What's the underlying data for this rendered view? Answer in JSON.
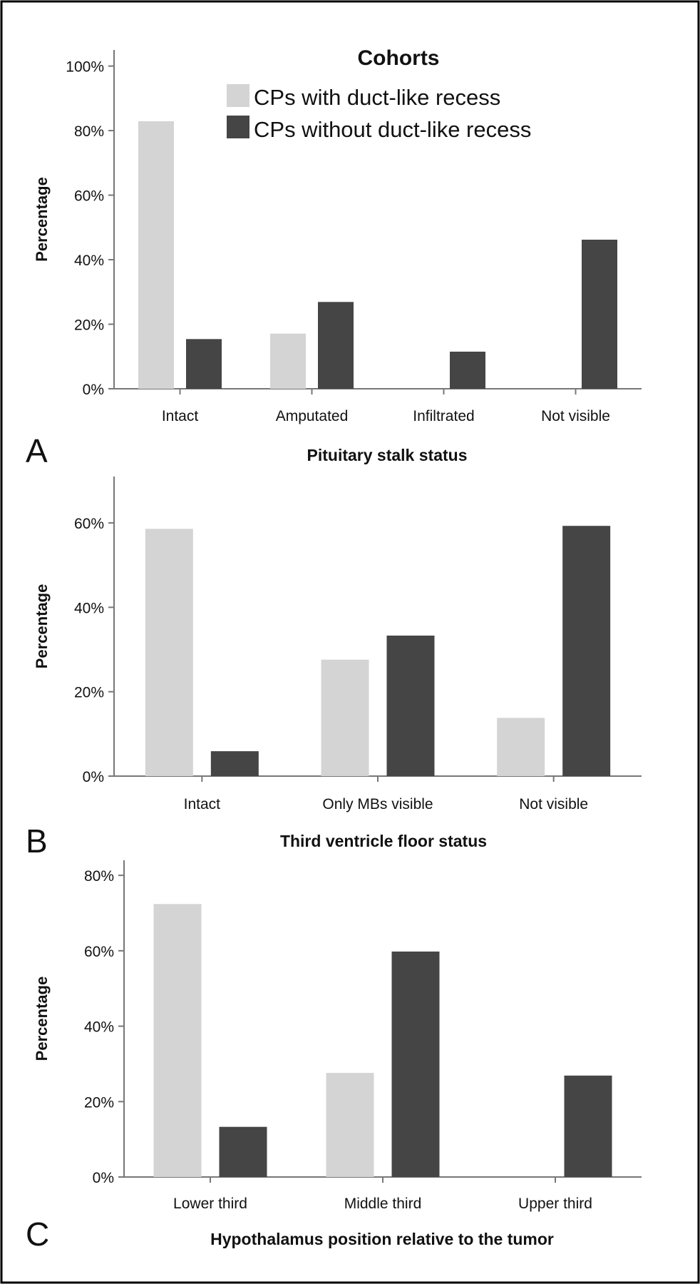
{
  "legend": {
    "title": "Cohorts",
    "entries": [
      {
        "label": "CPs with duct-like recess",
        "color": "#d4d4d4"
      },
      {
        "label": "CPs without duct-like recess",
        "color": "#454545"
      }
    ]
  },
  "chart_data": [
    {
      "panel": "A",
      "type": "bar",
      "categories": [
        "Intact",
        "Amputated",
        "Infiltrated",
        "Not visible"
      ],
      "series": [
        {
          "name": "CPs with duct-like recess",
          "values": [
            82.9,
            17.1,
            0,
            0
          ]
        },
        {
          "name": "CPs without duct-like recess",
          "values": [
            15.4,
            26.9,
            11.5,
            46.2
          ]
        }
      ],
      "xlabel": "Pituitary stalk status",
      "ylabel": "Percentage",
      "yticks": [
        "0%",
        "20%",
        "40%",
        "60%",
        "80%",
        "100%"
      ],
      "ylim": [
        0,
        105
      ],
      "grid": false,
      "legend_position": "top-right"
    },
    {
      "panel": "B",
      "type": "bar",
      "categories": [
        "Intact",
        "Only MBs visible",
        "Not visible"
      ],
      "series": [
        {
          "name": "CPs with duct-like recess",
          "values": [
            58.6,
            27.6,
            13.8
          ]
        },
        {
          "name": "CPs without duct-like recess",
          "values": [
            5.9,
            33.3,
            59.3
          ]
        }
      ],
      "xlabel": "Third ventricle floor status",
      "ylabel": "Percentage",
      "yticks": [
        "0%",
        "20%",
        "40%",
        "60%"
      ],
      "ylim": [
        0,
        71
      ],
      "grid": false
    },
    {
      "panel": "C",
      "type": "bar",
      "categories": [
        "Lower third",
        "Middle third",
        "Upper third"
      ],
      "series": [
        {
          "name": "CPs with duct-like recess",
          "values": [
            72.4,
            27.6,
            0
          ]
        },
        {
          "name": "CPs without duct-like recess",
          "values": [
            13.3,
            59.8,
            26.9
          ]
        }
      ],
      "xlabel": "Hypothalamus position relative to the tumor",
      "ylabel": "Percentage",
      "yticks": [
        "0%",
        "20%",
        "40%",
        "60%",
        "80%"
      ],
      "ylim": [
        0,
        84
      ],
      "grid": false
    }
  ]
}
